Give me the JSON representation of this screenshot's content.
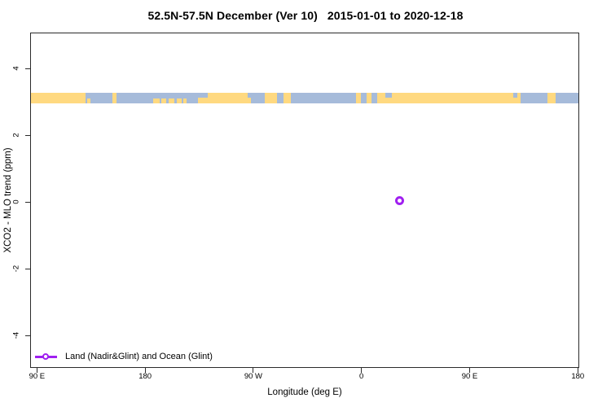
{
  "title": "52.5N-57.5N December (Ver 10)   2015-01-01 to 2020-12-18",
  "legend": {
    "label": "Land (Nadir&Glint) and Ocean (Glint)",
    "marker": "open-circle",
    "color": "#A020F0"
  },
  "colors": {
    "land": "#FFD980",
    "ocean": "#A6BBDA",
    "marker": "#A020F0",
    "axis": "#2b2b2b",
    "background": "#FFFFFF"
  },
  "chart_data": {
    "type": "scatter",
    "title": "52.5N-57.5N December (Ver 10)   2015-01-01 to 2020-12-18",
    "xlabel": "Longitude (deg E)",
    "ylabel": "XCO2 - MLO trend (ppm)",
    "xlim": [
      85,
      540.5
    ],
    "ylim": [
      -4.95,
      5.05
    ],
    "grid": false,
    "legend_position": "bottom-left-inside",
    "x_ticks": [
      {
        "value": 90,
        "label": "90 E"
      },
      {
        "value": 180,
        "label": "180"
      },
      {
        "value": 270,
        "label": "90 W"
      },
      {
        "value": 360,
        "label": "0"
      },
      {
        "value": 450,
        "label": "90 E"
      },
      {
        "value": 540,
        "label": "180"
      }
    ],
    "y_ticks": [
      {
        "value": -4,
        "label": "-4"
      },
      {
        "value": -2,
        "label": "-2"
      },
      {
        "value": 0,
        "label": "0"
      },
      {
        "value": 2,
        "label": "2"
      },
      {
        "value": 4,
        "label": "4"
      }
    ],
    "series": [
      {
        "name": "Land (Nadir&Glint) and Ocean (Glint)",
        "marker": "open-circle",
        "color": "#A020F0",
        "points": [
          {
            "lon_axis_deg": 392,
            "lon_deg_e": 32,
            "value_ppm": 0.05
          }
        ]
      }
    ],
    "land_ocean_band": {
      "description": "Map strip of 52.5N-57.5N latitude zone: land vs ocean along longitude",
      "y_top_ppm": 3.27,
      "y_bottom_ppm": 2.96,
      "land_color": "#FFD980",
      "ocean_color": "#A6BBDA",
      "land_segments": [
        [
          85,
          130.5
        ],
        [
          152.8,
          156.2
        ],
        [
          223.7,
          268.2
        ],
        [
          279.7,
          289.8
        ],
        [
          295.2,
          301.3
        ],
        [
          355.3,
          359.3
        ],
        [
          364.1,
          368.1
        ],
        [
          372.8,
          492.3
        ],
        [
          514.6,
          521.3
        ]
      ],
      "island_segments_bottom_half": [
        [
          131.5,
          134.5
        ],
        [
          187.0,
          192.0
        ],
        [
          193.5,
          197.5
        ],
        [
          199.5,
          204.0
        ],
        [
          206.0,
          210.5
        ],
        [
          211.5,
          214.5
        ]
      ],
      "inland_water_segments_top_half": [
        [
          223.7,
          232.4
        ],
        [
          265.5,
          268.2
        ],
        [
          379.6,
          385.0
        ],
        [
          486.0,
          490.0
        ]
      ]
    }
  }
}
